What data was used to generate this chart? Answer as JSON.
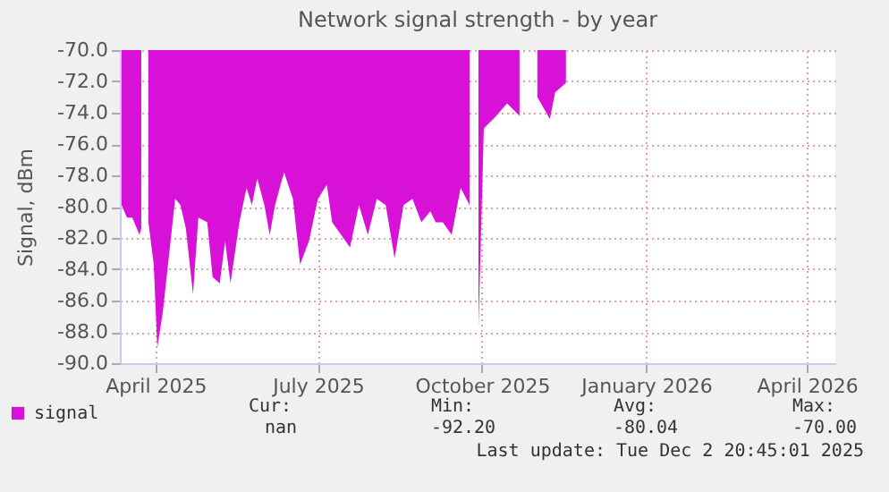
{
  "chart_data": {
    "type": "area",
    "title": "Network signal strength - by year",
    "ylabel": "Signal, dBm",
    "x": [
      "2025-03-13",
      "2025-03-16",
      "2025-03-19",
      "2025-03-23",
      "2025-03-24",
      "2025-03-25",
      "2025-03-28",
      "2025-03-31",
      "2025-04-02",
      "2025-04-05",
      "2025-04-08",
      "2025-04-12",
      "2025-04-15",
      "2025-04-18",
      "2025-04-22",
      "2025-04-25",
      "2025-04-30",
      "2025-05-03",
      "2025-05-07",
      "2025-05-10",
      "2025-05-13",
      "2025-05-18",
      "2025-05-22",
      "2025-05-25",
      "2025-05-28",
      "2025-06-01",
      "2025-06-04",
      "2025-06-07",
      "2025-06-12",
      "2025-06-17",
      "2025-06-21",
      "2025-06-26",
      "2025-07-01",
      "2025-07-06",
      "2025-07-09",
      "2025-07-14",
      "2025-07-19",
      "2025-07-24",
      "2025-07-29",
      "2025-08-03",
      "2025-08-08",
      "2025-08-13",
      "2025-08-18",
      "2025-08-23",
      "2025-08-28",
      "2025-09-02",
      "2025-09-05",
      "2025-09-09",
      "2025-09-14",
      "2025-09-19",
      "2025-09-24",
      "2025-09-26",
      "2025-09-29",
      "2025-10-02",
      "2025-10-09",
      "2025-10-15",
      "2025-10-22",
      "2025-10-27",
      "2025-11-01",
      "2025-11-08",
      "2025-11-11",
      "2025-11-17"
    ],
    "series": [
      {
        "name": "signal",
        "color": "#d711d7",
        "values": [
          -79.9,
          -80.7,
          -80.7,
          -81.8,
          -81.4,
          null,
          -81.0,
          -83.7,
          -89.0,
          -86.8,
          -83.7,
          -79.5,
          -79.9,
          -81.4,
          -85.6,
          -80.7,
          -81.0,
          -84.5,
          -84.9,
          -82.2,
          -84.9,
          -81.0,
          -78.8,
          -79.9,
          -78.2,
          -79.9,
          -81.8,
          -79.9,
          -77.8,
          -79.5,
          -83.7,
          -82.2,
          -79.5,
          -78.6,
          -81.0,
          -81.8,
          -82.6,
          -79.9,
          -81.8,
          -79.5,
          -79.9,
          -83.3,
          -79.9,
          -79.5,
          -81.0,
          -80.3,
          -81.0,
          -81.0,
          -81.8,
          -78.8,
          -79.9,
          null,
          -87.7,
          -75.0,
          -74.2,
          -73.4,
          -74.2,
          null,
          -73.0,
          -74.4,
          -72.7,
          -72.1
        ]
      }
    ],
    "xlim": [
      "2025-03-12",
      "2026-04-17"
    ],
    "xticks": [
      {
        "value": "2025-04-01",
        "label": "April 2025"
      },
      {
        "value": "2025-07-01",
        "label": "July 2025"
      },
      {
        "value": "2025-10-01",
        "label": "October 2025"
      },
      {
        "value": "2026-01-01",
        "label": "January 2026"
      },
      {
        "value": "2026-04-01",
        "label": "April 2026"
      }
    ],
    "ylim": [
      -90,
      -70
    ],
    "yticks": [
      {
        "value": -90,
        "label": "-90.0"
      },
      {
        "value": -88,
        "label": "-88.0"
      },
      {
        "value": -86,
        "label": "-86.0"
      },
      {
        "value": -84,
        "label": "-84.0"
      },
      {
        "value": -82,
        "label": "-82.0"
      },
      {
        "value": -80,
        "label": "-80.0"
      },
      {
        "value": -78,
        "label": "-78.0"
      },
      {
        "value": -76,
        "label": "-76.0"
      },
      {
        "value": -74,
        "label": "-74.0"
      },
      {
        "value": -72,
        "label": "-72.0"
      },
      {
        "value": -70,
        "label": "-70.0"
      }
    ],
    "grid": true,
    "legend": "bottom left",
    "annotations": [
      "Cur:",
      "nan",
      "Min:",
      "-92.20",
      "Avg:",
      "-80.04",
      "Max:",
      "-70.00",
      "Last update:  Tue Dec  2 20:45:01 2025"
    ]
  }
}
